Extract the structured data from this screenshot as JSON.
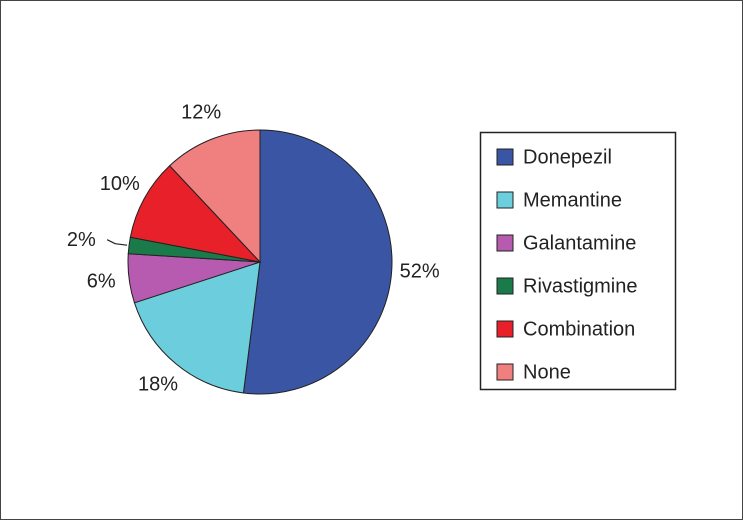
{
  "chart_data": {
    "type": "pie",
    "categories": [
      "Donepezil",
      "Memantine",
      "Galantamine",
      "Rivastigmine",
      "Combination",
      "None"
    ],
    "values": [
      52,
      18,
      6,
      2,
      10,
      12
    ],
    "value_labels": [
      "52%",
      "18%",
      "6%",
      "2%",
      "10%",
      "12%"
    ],
    "colors": [
      "#3a55a4",
      "#6ccedc",
      "#b65bb0",
      "#1a7a4a",
      "#e8202a",
      "#f08080"
    ],
    "legend": "right"
  }
}
